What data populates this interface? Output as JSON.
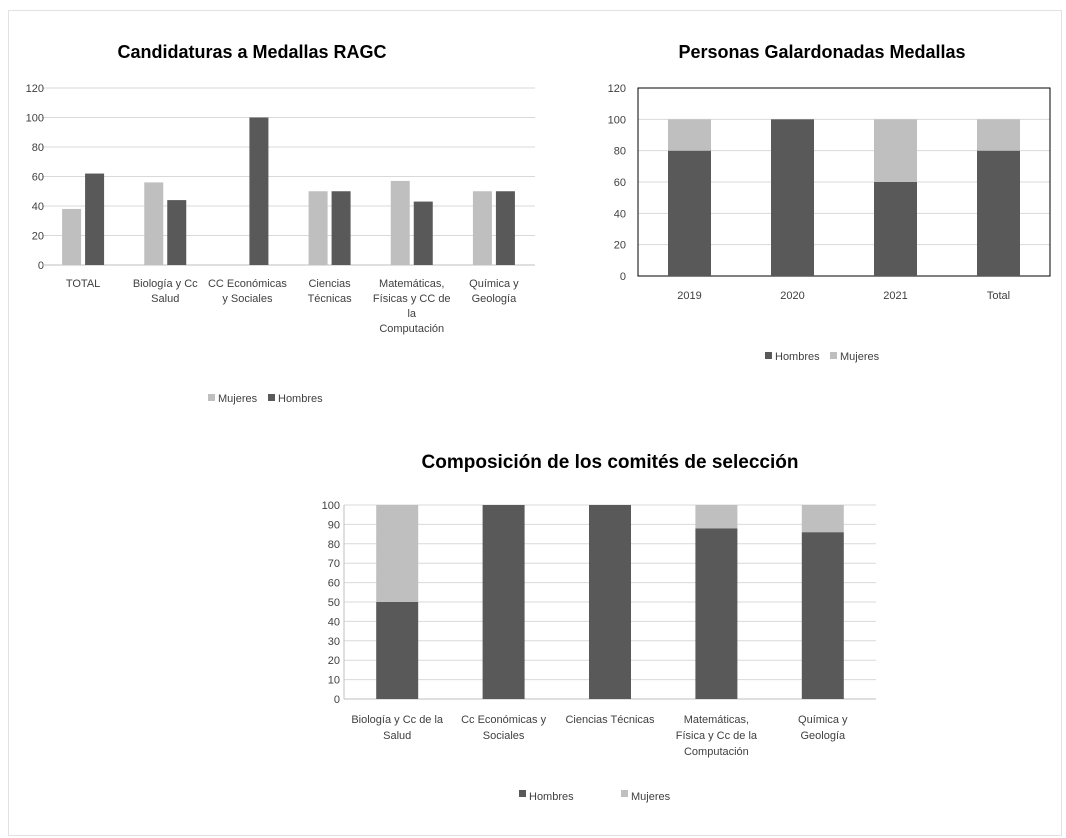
{
  "colors": {
    "hombres": "#595959",
    "mujeres": "#bfbfbf"
  },
  "chart_data": [
    {
      "id": "candidaturas",
      "type": "bar",
      "title": "Candidaturas a Medallas RAGC",
      "categories": [
        [
          "TOTAL"
        ],
        [
          "Biología y Cc",
          "Salud"
        ],
        [
          "CC Económicas",
          "y Sociales"
        ],
        [
          "Ciencias",
          "Técnicas"
        ],
        [
          "Matemáticas,",
          "Físicas y CC de",
          "la",
          "Computación"
        ],
        [
          "Química y",
          "Geología"
        ]
      ],
      "series": [
        {
          "name": "Mujeres",
          "values": [
            38,
            56,
            0,
            50,
            57,
            50
          ]
        },
        {
          "name": "Hombres",
          "values": [
            62,
            44,
            100,
            50,
            43,
            50
          ]
        }
      ],
      "ylim": [
        0,
        120
      ],
      "yticks": [
        0,
        20,
        40,
        60,
        80,
        100,
        120
      ],
      "grid": true,
      "legend": "bottom"
    },
    {
      "id": "galardonadas",
      "type": "stacked-bar",
      "title": "Personas Galardonadas Medallas",
      "categories": [
        [
          "2019"
        ],
        [
          "2020"
        ],
        [
          "2021"
        ],
        [
          "Total"
        ]
      ],
      "series": [
        {
          "name": "Hombres",
          "values": [
            80,
            100,
            60,
            80
          ]
        },
        {
          "name": "Mujeres",
          "values": [
            20,
            0,
            40,
            20
          ]
        }
      ],
      "ylim": [
        0,
        120
      ],
      "yticks": [
        0,
        20,
        40,
        60,
        80,
        100,
        120
      ],
      "grid": true,
      "legend": "bottom"
    },
    {
      "id": "comites",
      "type": "stacked-bar",
      "title": "Composición de los comités de selección",
      "categories": [
        [
          "Biología y Cc de la",
          "Salud"
        ],
        [
          "Cc Económicas y",
          "Sociales"
        ],
        [
          "Ciencias Técnicas"
        ],
        [
          "Matemáticas,",
          "Física y Cc de la",
          "Computación"
        ],
        [
          "Química y",
          "Geología"
        ]
      ],
      "series": [
        {
          "name": "Hombres",
          "values": [
            50,
            100,
            100,
            88,
            86
          ]
        },
        {
          "name": "Mujeres",
          "values": [
            50,
            0,
            0,
            12,
            14
          ]
        }
      ],
      "ylim": [
        0,
        100
      ],
      "yticks": [
        0,
        10,
        20,
        30,
        40,
        50,
        60,
        70,
        80,
        90,
        100
      ],
      "grid": true,
      "legend": "bottom"
    }
  ]
}
